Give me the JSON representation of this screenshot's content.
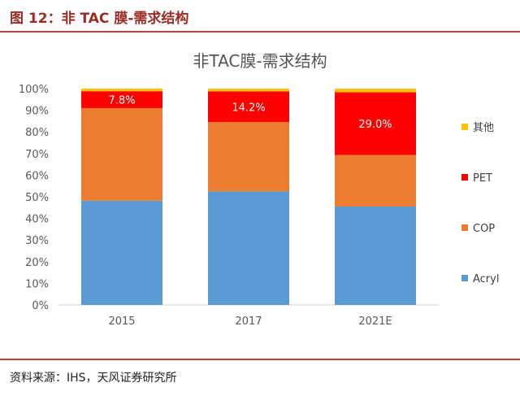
{
  "figure": {
    "label": "图 12：非 TAC 膜-需求结构",
    "source": "资料来源：IHS，天风证券研究所"
  },
  "colors": {
    "accent_red": "#b5433a",
    "acryl": "#5b9bd5",
    "cop": "#ed7d31",
    "pet": "#ff0000",
    "other": "#ffc000"
  },
  "chart_data": {
    "type": "bar",
    "stacked": true,
    "title": "非TAC膜-需求结构",
    "categories": [
      "2015",
      "2017",
      "2021E"
    ],
    "series": [
      {
        "name": "Acryl",
        "color": "#5b9bd5",
        "values": [
          48.2,
          52.5,
          45.5
        ]
      },
      {
        "name": "COP",
        "color": "#ed7d31",
        "values": [
          42.8,
          32.0,
          23.8
        ]
      },
      {
        "name": "PET",
        "color": "#ff0000",
        "values": [
          7.8,
          14.2,
          29.0
        ]
      },
      {
        "name": "其他",
        "color": "#ffc000",
        "values": [
          1.2,
          1.3,
          1.7
        ]
      }
    ],
    "data_labels": {
      "series": "PET",
      "texts": [
        "7.8%",
        "14.2%",
        "29.0%"
      ]
    },
    "yticks": [
      "0%",
      "10%",
      "20%",
      "30%",
      "40%",
      "50%",
      "60%",
      "70%",
      "80%",
      "90%",
      "100%"
    ],
    "ylim": [
      0,
      100
    ],
    "grid": false,
    "legend_position": "right"
  }
}
